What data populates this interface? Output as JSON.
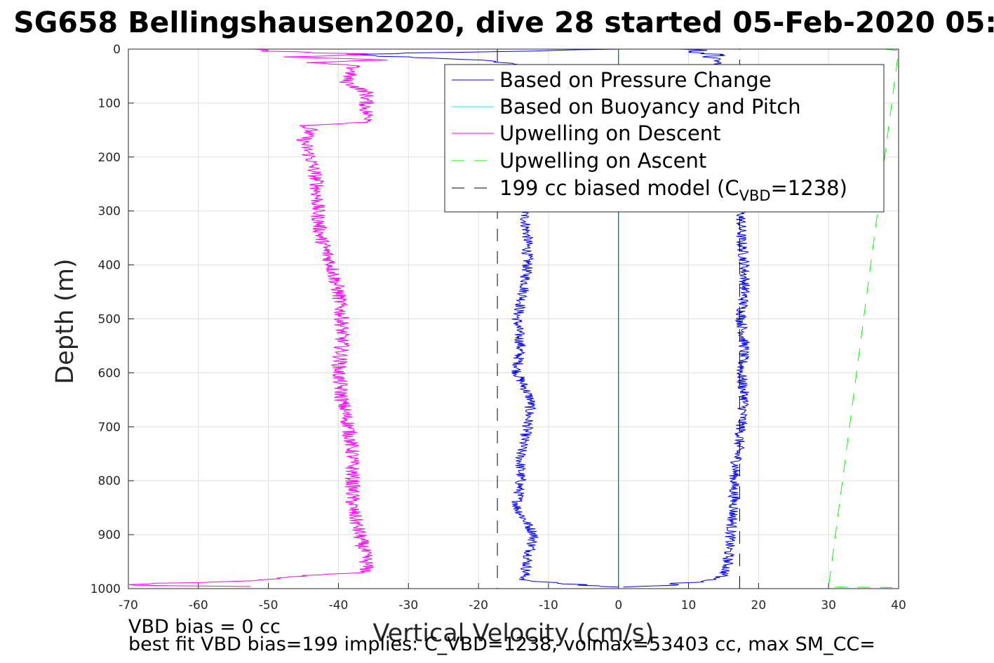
{
  "figure": {
    "title": "SG658 Bellingshausen2020, dive 28 started 05-Feb-2020 05:",
    "note_line1": "VBD bias = 0 cc",
    "note_line2": "best fit VBD bias=199 implies: C_VBD=1238, volmax=53403 cc, max SM_CC="
  },
  "chart_data": {
    "type": "line",
    "xlabel": "Vertical Velocity (cm/s)",
    "ylabel": "Depth (m)",
    "xlim": [
      -70,
      40
    ],
    "ylim": [
      0,
      1000
    ],
    "y_reversed": true,
    "grid": true,
    "xticks": [
      "-70",
      "-60",
      "-50",
      "-40",
      "-30",
      "-20",
      "-10",
      "0",
      "10",
      "20",
      "30",
      "40"
    ],
    "yticks": [
      "0",
      "100",
      "200",
      "300",
      "400",
      "500",
      "600",
      "700",
      "800",
      "900",
      "1000"
    ],
    "legend": {
      "placement": "top-right",
      "entries": [
        {
          "label": "Based on Pressure Change",
          "color": "#0000ff",
          "style": "solid"
        },
        {
          "label": "Based on Buoyancy and Pitch",
          "color": "#00ffff",
          "style": "solid"
        },
        {
          "label": "Upwelling on Descent",
          "color": "#ff00ff",
          "style": "solid"
        },
        {
          "label": "Upwelling on Ascent",
          "color": "#00ff00",
          "style": "dashed"
        },
        {
          "label_main": "199 cc biased model (C",
          "label_sub": "VBD",
          "label_tail": "=1238)",
          "color": "#000000",
          "style": "dashed"
        }
      ]
    },
    "series": [
      {
        "name": "Based on Pressure Change (descent)",
        "color": "#0000ff",
        "depth": [
          0,
          10,
          20,
          30,
          50,
          100,
          150,
          200,
          250,
          300,
          350,
          400,
          450,
          500,
          550,
          600,
          650,
          700,
          750,
          800,
          850,
          900,
          950,
          985,
          993,
          998
        ],
        "velocity": [
          0,
          -40,
          -20,
          -13,
          -13.5,
          -13.5,
          -13.5,
          -13.5,
          -13.5,
          -13.5,
          -13,
          -13,
          -13.5,
          -14.5,
          -14,
          -14.5,
          -12.5,
          -13,
          -14,
          -14,
          -14.5,
          -12,
          -13,
          -13.5,
          -5,
          0
        ]
      },
      {
        "name": "Based on Pressure Change (ascent)",
        "color": "#0000ff",
        "depth": [
          998,
          995,
          990,
          985,
          975,
          960,
          900,
          850,
          800,
          750,
          700,
          650,
          600,
          550,
          500,
          450,
          400,
          350,
          300,
          250,
          200,
          150,
          100,
          60,
          40,
          20,
          10,
          5,
          0
        ],
        "velocity": [
          2,
          6,
          10,
          13,
          15,
          15.5,
          16,
          16.5,
          16.5,
          17,
          17.5,
          18,
          17.5,
          18,
          17.5,
          18,
          18,
          17.5,
          17.5,
          17.5,
          17.5,
          17.5,
          17,
          16,
          15,
          14,
          13,
          12,
          10
        ]
      },
      {
        "name": "Based on Buoyancy and Pitch",
        "color": "#00ffff",
        "depth": [
          0,
          1000
        ],
        "velocity": [
          0,
          0
        ]
      },
      {
        "name": "Upwelling on Descent",
        "color": "#ff00ff",
        "depth": [
          0,
          5,
          10,
          15,
          20,
          25,
          30,
          40,
          60,
          80,
          100,
          120,
          135,
          142,
          150,
          170,
          200,
          250,
          300,
          350,
          400,
          450,
          500,
          550,
          600,
          650,
          700,
          750,
          800,
          850,
          900,
          950,
          970,
          975,
          985,
          993,
          997
        ],
        "velocity": [
          -55,
          -45,
          -35,
          -47,
          -33,
          -45,
          -38,
          -38,
          -39,
          -36,
          -36,
          -36,
          -35,
          -45,
          -44,
          -45,
          -44,
          -43,
          -43,
          -42.5,
          -41,
          -40,
          -39.5,
          -39.5,
          -40,
          -39.5,
          -38.5,
          -38,
          -38,
          -38,
          -37,
          -36,
          -36,
          -44,
          -52,
          -70,
          -48
        ]
      },
      {
        "name": "Upwelling on Ascent",
        "color": "#00ff00",
        "depth": [
          0,
          3,
          997,
          998
        ],
        "velocity": [
          38,
          40,
          30,
          40
        ]
      },
      {
        "name": "199 cc biased model (C_VBD=1238)",
        "color": "#000000",
        "depth": [
          0,
          1000,
          1000,
          0
        ],
        "velocity": [
          -17.3,
          -17.3,
          17.3,
          17.3
        ]
      }
    ]
  }
}
